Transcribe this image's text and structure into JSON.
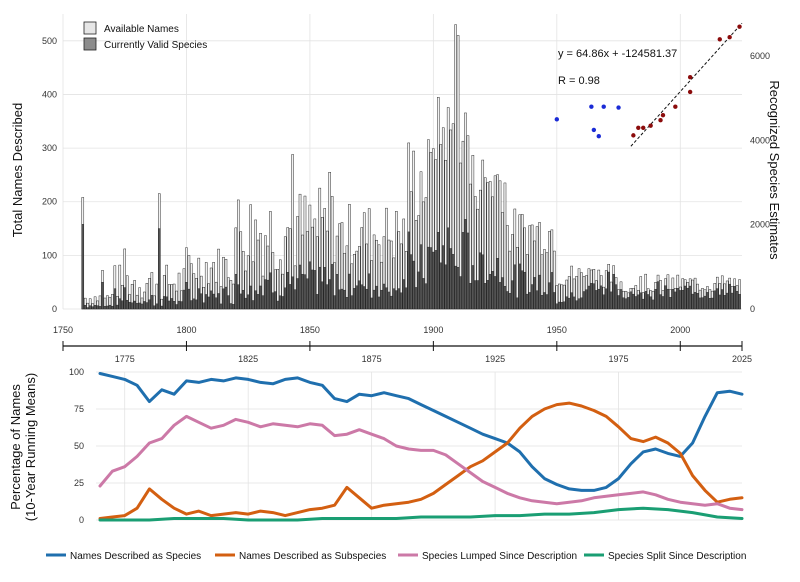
{
  "chart_data": [
    {
      "type": "bar",
      "panel": "top-histogram",
      "ylabel": "Total Names Described",
      "ylabel_right": "Recognized Species Estimates",
      "xlim": [
        1750,
        2025
      ],
      "ylim": [
        0,
        550
      ],
      "ylim_right": [
        0,
        7000
      ],
      "x_ticks": [
        "1750",
        "1800",
        "1850",
        "1900",
        "1950",
        "2000"
      ],
      "y_ticks": [
        "0",
        "100",
        "200",
        "300",
        "400",
        "500"
      ],
      "y_ticks_right": [
        "0",
        "2000",
        "4000",
        "6000"
      ],
      "grid": true,
      "legend_position": "top-left",
      "series": [
        {
          "name": "Available Names",
          "color": "#e6e6e6"
        },
        {
          "name": "Currently Valid Species",
          "color": "#8c8c8c"
        }
      ],
      "highlights": [
        {
          "x": 1758,
          "available": 208,
          "valid": 158
        },
        {
          "x": 1766,
          "available": 72,
          "valid": 50
        },
        {
          "x": 1775,
          "available": 112,
          "valid": 40
        },
        {
          "x": 1789,
          "available": 215,
          "valid": 150
        },
        {
          "x": 1843,
          "available": 288,
          "valid": 60
        },
        {
          "x": 1858,
          "available": 255,
          "valid": 55
        },
        {
          "x": 1909,
          "available": 530,
          "valid": 80
        },
        {
          "x": 1910,
          "available": 510,
          "valid": 78
        }
      ],
      "scatter": {
        "blue_points": [
          {
            "x": 1950,
            "y": 4500
          },
          {
            "x": 1964,
            "y": 4800
          },
          {
            "x": 1965,
            "y": 4250
          },
          {
            "x": 1967,
            "y": 4100
          },
          {
            "x": 1969,
            "y": 4800
          },
          {
            "x": 1975,
            "y": 4780
          }
        ],
        "red_points": [
          {
            "x": 1981,
            "y": 4120
          },
          {
            "x": 1983,
            "y": 4300
          },
          {
            "x": 1985,
            "y": 4300
          },
          {
            "x": 1988,
            "y": 4350
          },
          {
            "x": 1992,
            "y": 4480
          },
          {
            "x": 1993,
            "y": 4600
          },
          {
            "x": 1998,
            "y": 4800
          },
          {
            "x": 2004,
            "y": 5150
          },
          {
            "x": 2004,
            "y": 5500
          },
          {
            "x": 2016,
            "y": 6400
          },
          {
            "x": 2020,
            "y": 6450
          },
          {
            "x": 2024,
            "y": 6700
          }
        ],
        "fit_line": {
          "x": [
            1980,
            2025
          ],
          "y": [
            3862,
            6781
          ]
        },
        "equation": "y = 64.86x + -124581.37",
        "r_label": "R = 0.98"
      }
    },
    {
      "type": "line",
      "panel": "bottom-lines",
      "ylabel_line1": "Percentage of Names",
      "ylabel_line2": "(10-Year Running Means)",
      "xlim": [
        1758,
        2025
      ],
      "ylim": [
        0,
        100
      ],
      "x_ticks": [
        "1775",
        "1825",
        "1875",
        "1925",
        "1975"
      ],
      "y_ticks": [
        "0",
        "25",
        "50",
        "75",
        "100"
      ],
      "mid_axis_ticks": [
        "1750",
        "1800",
        "1850",
        "1900",
        "1950",
        "2000",
        "2025"
      ],
      "grid": true,
      "legend_position": "bottom",
      "series": [
        {
          "name": "Names Described as Species",
          "color": "#1f6fae",
          "x": [
            1765,
            1770,
            1775,
            1780,
            1785,
            1790,
            1795,
            1800,
            1805,
            1810,
            1815,
            1820,
            1825,
            1830,
            1835,
            1840,
            1845,
            1850,
            1855,
            1860,
            1865,
            1870,
            1875,
            1880,
            1885,
            1890,
            1895,
            1900,
            1905,
            1910,
            1915,
            1920,
            1925,
            1930,
            1935,
            1940,
            1945,
            1950,
            1955,
            1960,
            1965,
            1970,
            1975,
            1980,
            1985,
            1990,
            1995,
            2000,
            2005,
            2010,
            2015,
            2020,
            2025
          ],
          "y": [
            99,
            97,
            95,
            91,
            80,
            88,
            85,
            94,
            93,
            95,
            94,
            96,
            95,
            93,
            92,
            95,
            96,
            93,
            91,
            82,
            80,
            85,
            84,
            86,
            84,
            82,
            78,
            74,
            70,
            66,
            62,
            58,
            55,
            52,
            46,
            36,
            28,
            24,
            21,
            20,
            20,
            22,
            28,
            38,
            46,
            48,
            45,
            43,
            52,
            70,
            86,
            87,
            85
          ]
        },
        {
          "name": "Names Described as Subspecies",
          "color": "#d35f11",
          "x": [
            1765,
            1770,
            1775,
            1780,
            1785,
            1790,
            1795,
            1800,
            1805,
            1810,
            1815,
            1820,
            1825,
            1830,
            1835,
            1840,
            1845,
            1850,
            1855,
            1860,
            1865,
            1870,
            1875,
            1880,
            1885,
            1890,
            1895,
            1900,
            1905,
            1910,
            1915,
            1920,
            1925,
            1930,
            1935,
            1940,
            1945,
            1950,
            1955,
            1960,
            1965,
            1970,
            1975,
            1980,
            1985,
            1990,
            1995,
            2000,
            2005,
            2010,
            2015,
            2020,
            2025
          ],
          "y": [
            1,
            2,
            3,
            8,
            21,
            14,
            8,
            4,
            6,
            3,
            4,
            5,
            4,
            6,
            5,
            3,
            5,
            7,
            8,
            10,
            22,
            15,
            8,
            10,
            11,
            12,
            14,
            18,
            24,
            30,
            36,
            40,
            46,
            52,
            62,
            70,
            75,
            78,
            79,
            77,
            74,
            70,
            63,
            55,
            53,
            56,
            52,
            45,
            30,
            20,
            12,
            14,
            15
          ]
        },
        {
          "name": "Species Lumped Since Description",
          "color": "#cc79a7",
          "x": [
            1765,
            1770,
            1775,
            1780,
            1785,
            1790,
            1795,
            1800,
            1805,
            1810,
            1815,
            1820,
            1825,
            1830,
            1835,
            1840,
            1845,
            1850,
            1855,
            1860,
            1865,
            1870,
            1875,
            1880,
            1885,
            1890,
            1895,
            1900,
            1905,
            1910,
            1915,
            1920,
            1925,
            1930,
            1935,
            1940,
            1945,
            1950,
            1955,
            1960,
            1965,
            1970,
            1975,
            1980,
            1985,
            1990,
            1995,
            2000,
            2005,
            2010,
            2015,
            2020,
            2025
          ],
          "y": [
            23,
            33,
            36,
            43,
            52,
            55,
            64,
            70,
            66,
            62,
            64,
            68,
            66,
            63,
            65,
            64,
            63,
            65,
            64,
            57,
            58,
            61,
            58,
            55,
            50,
            48,
            47,
            47,
            44,
            38,
            32,
            26,
            22,
            18,
            15,
            13,
            12,
            11,
            12,
            13,
            15,
            16,
            17,
            18,
            19,
            17,
            14,
            12,
            11,
            10,
            11,
            8,
            7
          ]
        },
        {
          "name": "Species Split Since Description",
          "color": "#1a9e73",
          "x": [
            1765,
            1775,
            1785,
            1795,
            1805,
            1815,
            1825,
            1835,
            1845,
            1855,
            1865,
            1875,
            1885,
            1895,
            1905,
            1915,
            1925,
            1935,
            1945,
            1955,
            1965,
            1975,
            1985,
            1995,
            2005,
            2015,
            2025
          ],
          "y": [
            0,
            0,
            0,
            1,
            1,
            1,
            0,
            0,
            0,
            1,
            1,
            1,
            1,
            2,
            2,
            2,
            3,
            3,
            4,
            4,
            5,
            7,
            8,
            7,
            5,
            2,
            1
          ]
        }
      ]
    }
  ]
}
